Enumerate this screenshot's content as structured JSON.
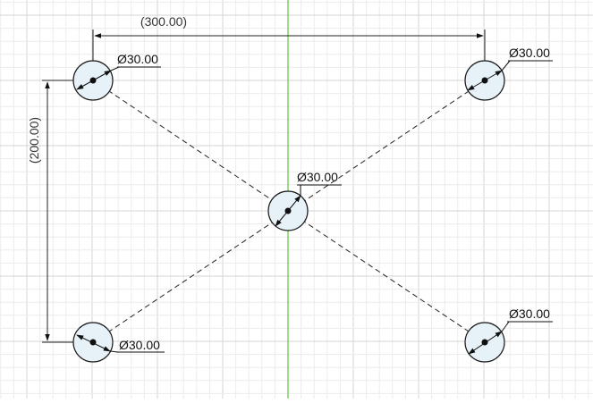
{
  "sketch": {
    "horizontal_dimension": "(300.00)",
    "vertical_dimension": "(200.00)",
    "holes": [
      {
        "id": "top-left",
        "diameter_label": "Ø30.00"
      },
      {
        "id": "top-right",
        "diameter_label": "Ø30.00"
      },
      {
        "id": "center",
        "diameter_label": "Ø30.00"
      },
      {
        "id": "bottom-left",
        "diameter_label": "Ø30.00"
      },
      {
        "id": "bottom-right",
        "diameter_label": "Ø30.00"
      }
    ]
  },
  "colors": {
    "background": "#ffffff",
    "grid_minor": "#ececec",
    "grid_major": "#d4d4d4",
    "axis": "#5dc83a",
    "hole_fill": "#e6f1f8",
    "hole_stroke": "#1a1a1a",
    "construction_line": "#222222",
    "dimension_line": "#222222"
  }
}
